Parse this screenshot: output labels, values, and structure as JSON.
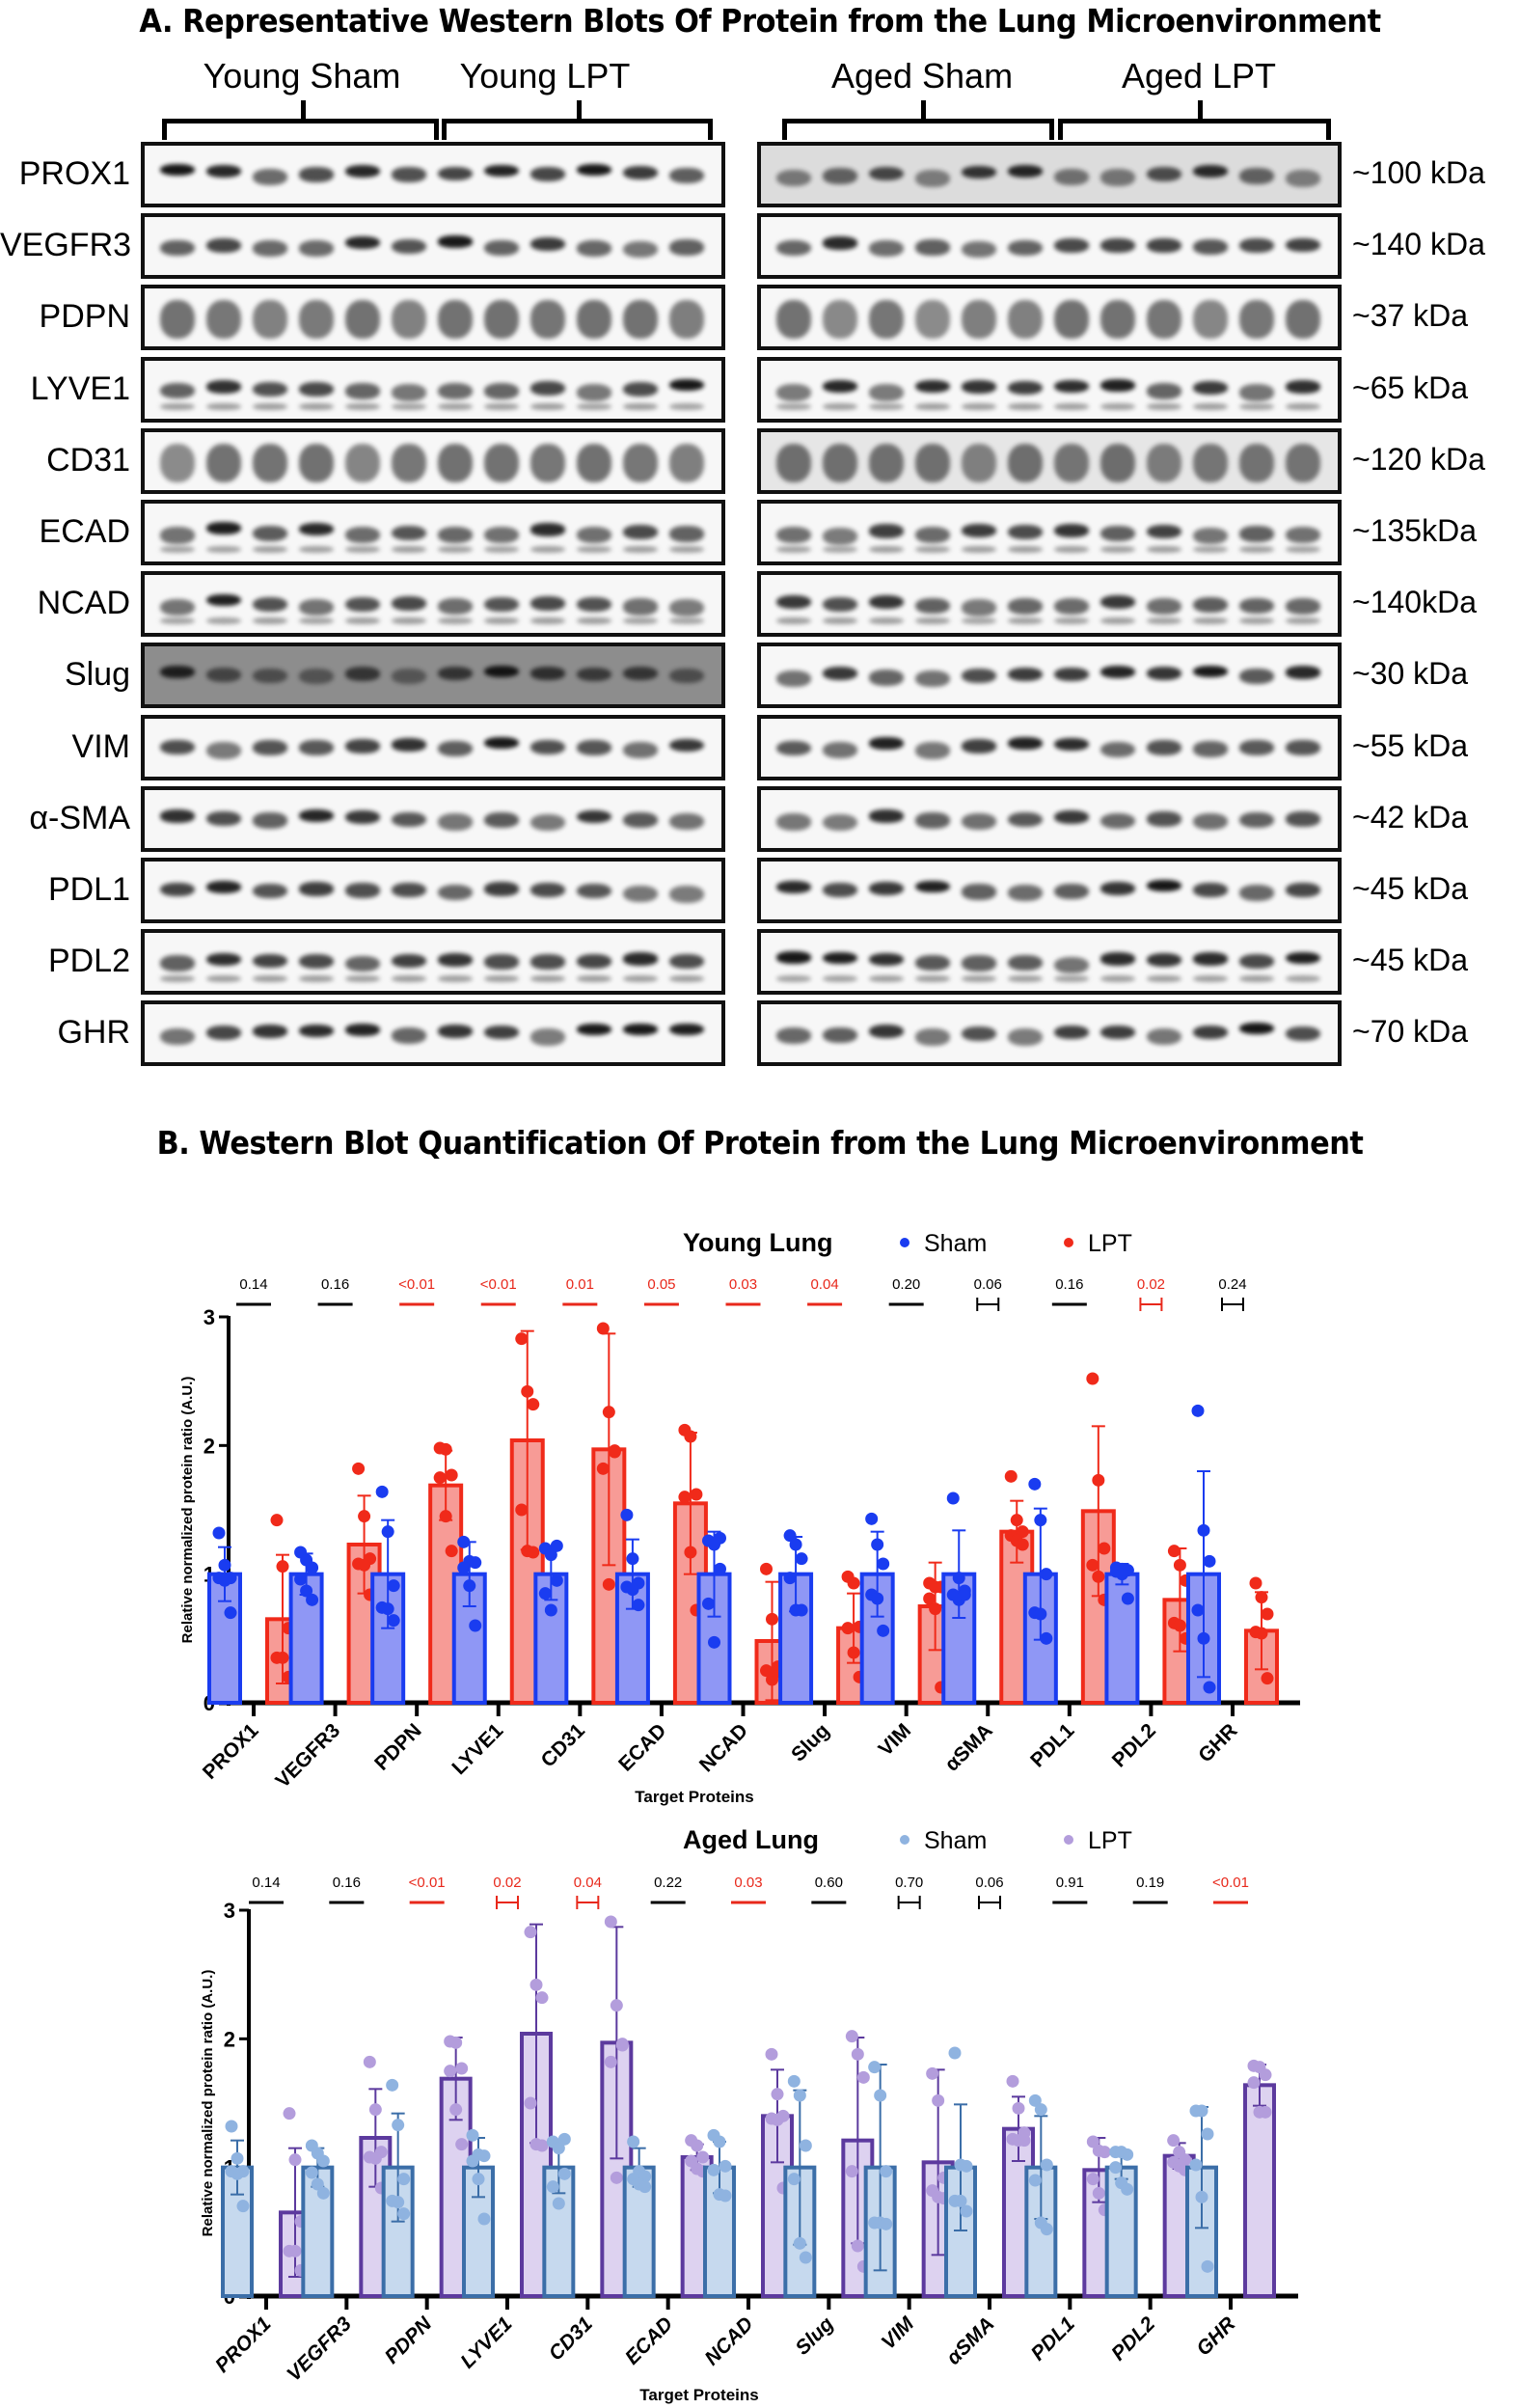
{
  "panel_a": {
    "title": "A. Representative Western Blots Of Protein from the Lung Microenvironment",
    "groups": [
      "Young Sham",
      "Young LPT",
      "Aged Sham",
      "Aged LPT"
    ],
    "rows": [
      {
        "protein": "PROX1",
        "size": "~100 kDa"
      },
      {
        "protein": "VEGFR3",
        "size": "~140 kDa"
      },
      {
        "protein": "PDPN",
        "size": "~37 kDa"
      },
      {
        "protein": "LYVE1",
        "size": "~65 kDa"
      },
      {
        "protein": "CD31",
        "size": "~120 kDa"
      },
      {
        "protein": "ECAD",
        "size": "~135kDa"
      },
      {
        "protein": "NCAD",
        "size": "~140kDa"
      },
      {
        "protein": "Slug",
        "size": "~30 kDa"
      },
      {
        "protein": "VIM",
        "size": "~55 kDa"
      },
      {
        "protein": "α-SMA",
        "size": "~42 kDa"
      },
      {
        "protein": "PDL1",
        "size": "~45 kDa"
      },
      {
        "protein": "PDL2",
        "size": "~45 kDa"
      },
      {
        "protein": "GHR",
        "size": "~70 kDa"
      }
    ],
    "lanes_per_panel": 12
  },
  "panel_b": {
    "title": "B. Western Blot Quantification Of Protein from the Lung Microenvironment"
  },
  "chart_data": [
    {
      "type": "bar",
      "title": "Young Lung",
      "xlabel": "Target Proteins",
      "ylabel": "Relative normalized protein ratio (A.U.)",
      "ylim": [
        0,
        3
      ],
      "yticks": [
        0,
        1,
        2,
        3
      ],
      "legend_position": "top",
      "categories": [
        "PROX1",
        "VEGFR3",
        "PDPN",
        "LYVE1",
        "CD31",
        "ECAD",
        "NCAD",
        "Slug",
        "VIM",
        "αSMA",
        "PDL1",
        "PDL2",
        "GHR"
      ],
      "p_values": [
        "0.14",
        "0.16",
        "<0.01",
        "<0.01",
        "0.01",
        "0.05",
        "0.03",
        "0.04",
        "0.20",
        "0.06",
        "0.16",
        "0.02",
        "0.24"
      ],
      "p_significant": [
        false,
        false,
        true,
        true,
        true,
        true,
        true,
        true,
        false,
        false,
        false,
        true,
        false
      ],
      "series": [
        {
          "name": "Sham",
          "color": "#1a3cf0",
          "fill": "#8f97f5",
          "values": [
            1,
            1,
            1,
            1,
            1,
            1,
            1,
            1,
            1,
            1,
            1,
            1,
            1
          ],
          "sd": [
            0.21,
            0.16,
            0.42,
            0.25,
            0.2,
            0.27,
            0.33,
            0.29,
            0.33,
            0.34,
            0.51,
            0.08,
            0.8
          ],
          "points": [
            [
              1.32,
              1.07,
              0.97,
              0.97,
              0.95,
              0.7
            ],
            [
              1.17,
              1.11,
              1.05,
              0.96,
              0.87,
              0.8
            ],
            [
              1.64,
              1.33,
              0.91,
              0.74,
              0.73,
              0.64
            ],
            [
              1.25,
              1.1,
              1.09,
              1.05,
              0.91,
              0.6
            ],
            [
              1.2,
              1.15,
              0.95,
              0.85,
              0.72,
              1.22
            ],
            [
              1.46,
              1.12,
              0.93,
              0.9,
              0.88,
              0.76
            ],
            [
              1.26,
              1.23,
              1.04,
              0.77,
              0.47,
              1.28
            ],
            [
              1.3,
              1.23,
              1.12,
              0.97,
              0.72,
              0.72
            ],
            [
              1.43,
              1.23,
              1.08,
              0.84,
              0.81,
              0.56
            ],
            [
              1.59,
              0.97,
              0.87,
              0.84,
              0.8,
              0.84
            ],
            [
              1.7,
              1.42,
              1.0,
              0.7,
              0.69,
              0.5
            ],
            [
              1.05,
              1.04,
              1.03,
              1.02,
              1.0,
              0.81
            ],
            [
              2.27,
              1.34,
              1.1,
              0.72,
              0.5,
              0.12
            ]
          ]
        },
        {
          "name": "LPT",
          "color": "#f02a1a",
          "fill": "#f79b96",
          "values": [
            0.65,
            1.23,
            1.69,
            2.04,
            1.97,
            1.55,
            0.48,
            0.58,
            0.75,
            1.33,
            1.49,
            0.8,
            0.56
          ],
          "sd": [
            0.5,
            0.38,
            0.27,
            0.85,
            0.9,
            0.55,
            0.46,
            0.27,
            0.34,
            0.24,
            0.66,
            0.4,
            0.3
          ],
          "points": [
            [
              1.42,
              1.06,
              0.58,
              0.35,
              0.35,
              0.2
            ],
            [
              1.82,
              1.45,
              1.12,
              1.08,
              1.07,
              0.84
            ],
            [
              1.98,
              1.97,
              1.77,
              1.75,
              1.45,
              1.18
            ],
            [
              2.83,
              2.42,
              2.32,
              1.5,
              1.18,
              1.17
            ],
            [
              2.91,
              2.26,
              1.96,
              1.82,
              0.92,
              1.95
            ],
            [
              2.12,
              2.07,
              1.62,
              1.6,
              1.17,
              0.72
            ],
            [
              1.04,
              0.65,
              0.28,
              0.25,
              0.18,
              0.24
            ],
            [
              0.98,
              0.93,
              0.59,
              0.58,
              0.39,
              0.2
            ],
            [
              0.93,
              0.9,
              0.9,
              0.81,
              0.73,
              0.12
            ],
            [
              1.76,
              1.42,
              1.33,
              1.3,
              1.26,
              1.23
            ],
            [
              2.52,
              1.73,
              1.2,
              1.07,
              0.98,
              0.8
            ],
            [
              1.18,
              1.07,
              0.95,
              0.62,
              0.6,
              0.5
            ],
            [
              0.93,
              0.82,
              0.69,
              0.55,
              0.54,
              0.19
            ]
          ]
        }
      ]
    },
    {
      "type": "bar",
      "title": "Aged Lung",
      "xlabel": "Target Proteins",
      "ylabel": "Relative normalized protein ratio (A.U.)",
      "ylim": [
        0,
        3
      ],
      "yticks": [
        0,
        1,
        2,
        3
      ],
      "legend_position": "top",
      "categories": [
        "PROX1",
        "VEGFR3",
        "PDPN",
        "LYVE1",
        "CD31",
        "ECAD",
        "NCAD",
        "Slug",
        "VIM",
        "αSMA",
        "PDL1",
        "PDL2",
        "GHR"
      ],
      "p_values": [
        "0.14",
        "0.16",
        "<0.01",
        "0.02",
        "0.04",
        "0.22",
        "0.03",
        "0.60",
        "0.70",
        "0.06",
        "0.91",
        "0.19",
        "<0.01"
      ],
      "p_significant": [
        false,
        false,
        true,
        true,
        true,
        false,
        true,
        false,
        false,
        false,
        false,
        false,
        true
      ],
      "series": [
        {
          "name": "Sham",
          "color": "#3b6ea8",
          "fill": "#c6d9ee",
          "point_color": "#8fb3e0",
          "values": [
            1,
            1,
            1,
            1,
            1,
            1,
            1,
            1,
            1,
            1,
            1,
            1,
            1
          ],
          "sd": [
            0.21,
            0.15,
            0.42,
            0.23,
            0.2,
            0.15,
            0.2,
            0.6,
            0.8,
            0.49,
            0.4,
            0.09,
            0.47
          ],
          "points": [
            [
              1.32,
              1.07,
              0.97,
              0.97,
              0.95,
              0.7
            ],
            [
              1.17,
              1.11,
              1.05,
              0.96,
              0.87,
              0.8
            ],
            [
              1.64,
              1.33,
              0.91,
              0.74,
              0.73,
              0.64
            ],
            [
              1.25,
              1.1,
              1.09,
              1.05,
              0.91,
              0.6
            ],
            [
              1.2,
              1.15,
              0.95,
              0.85,
              0.72,
              1.22
            ],
            [
              1.2,
              0.97,
              0.93,
              0.91,
              0.87,
              0.85
            ],
            [
              1.25,
              1.2,
              1.01,
              0.98,
              0.79,
              0.78
            ],
            [
              1.67,
              1.56,
              1.17,
              0.91,
              0.41,
              0.3
            ],
            [
              1.78,
              1.56,
              0.97,
              0.57,
              0.57,
              0.56
            ],
            [
              1.89,
              1.02,
              1.01,
              0.74,
              0.74,
              0.66
            ],
            [
              1.52,
              1.45,
              1.02,
              0.9,
              0.57,
              0.52
            ],
            [
              1.12,
              1.12,
              1.1,
              1.0,
              0.88,
              0.83
            ],
            [
              1.44,
              1.44,
              1.26,
              1.02,
              0.77,
              0.23
            ]
          ]
        },
        {
          "name": "LPT",
          "color": "#5c3a9e",
          "fill": "#ddd2f0",
          "point_color": "#b39ddc",
          "values": [
            0.65,
            1.23,
            1.69,
            2.04,
            1.97,
            1.08,
            1.4,
            1.21,
            1.04,
            1.3,
            0.98,
            1.09,
            1.64
          ],
          "sd": [
            0.5,
            0.38,
            0.32,
            0.85,
            0.9,
            0.1,
            0.36,
            0.8,
            0.72,
            0.25,
            0.25,
            0.1,
            0.16
          ],
          "points": [
            [
              1.42,
              1.06,
              0.58,
              0.35,
              0.35,
              0.2
            ],
            [
              1.82,
              1.45,
              1.12,
              1.08,
              1.07,
              0.84
            ],
            [
              1.98,
              1.97,
              1.77,
              1.75,
              1.45,
              1.18
            ],
            [
              2.83,
              2.42,
              2.32,
              1.5,
              1.18,
              1.17
            ],
            [
              2.91,
              2.26,
              1.96,
              1.82,
              0.92,
              1.95
            ],
            [
              1.21,
              1.17,
              1.08,
              1.05,
              0.99,
              0.97
            ],
            [
              1.88,
              1.57,
              1.4,
              1.38,
              1.37,
              0.84
            ],
            [
              2.02,
              1.88,
              1.7,
              0.97,
              0.39,
              0.23
            ],
            [
              1.73,
              1.52,
              0.92,
              0.82,
              0.77,
              0.76
            ],
            [
              1.67,
              1.46,
              1.27,
              1.22,
              1.21,
              1.21
            ],
            [
              1.2,
              1.13,
              1.12,
              0.91,
              0.8,
              0.67
            ],
            [
              1.21,
              1.12,
              1.06,
              1.04,
              1.01,
              0.98
            ],
            [
              1.79,
              1.78,
              1.72,
              1.66,
              1.43,
              1.43
            ]
          ]
        }
      ]
    }
  ]
}
